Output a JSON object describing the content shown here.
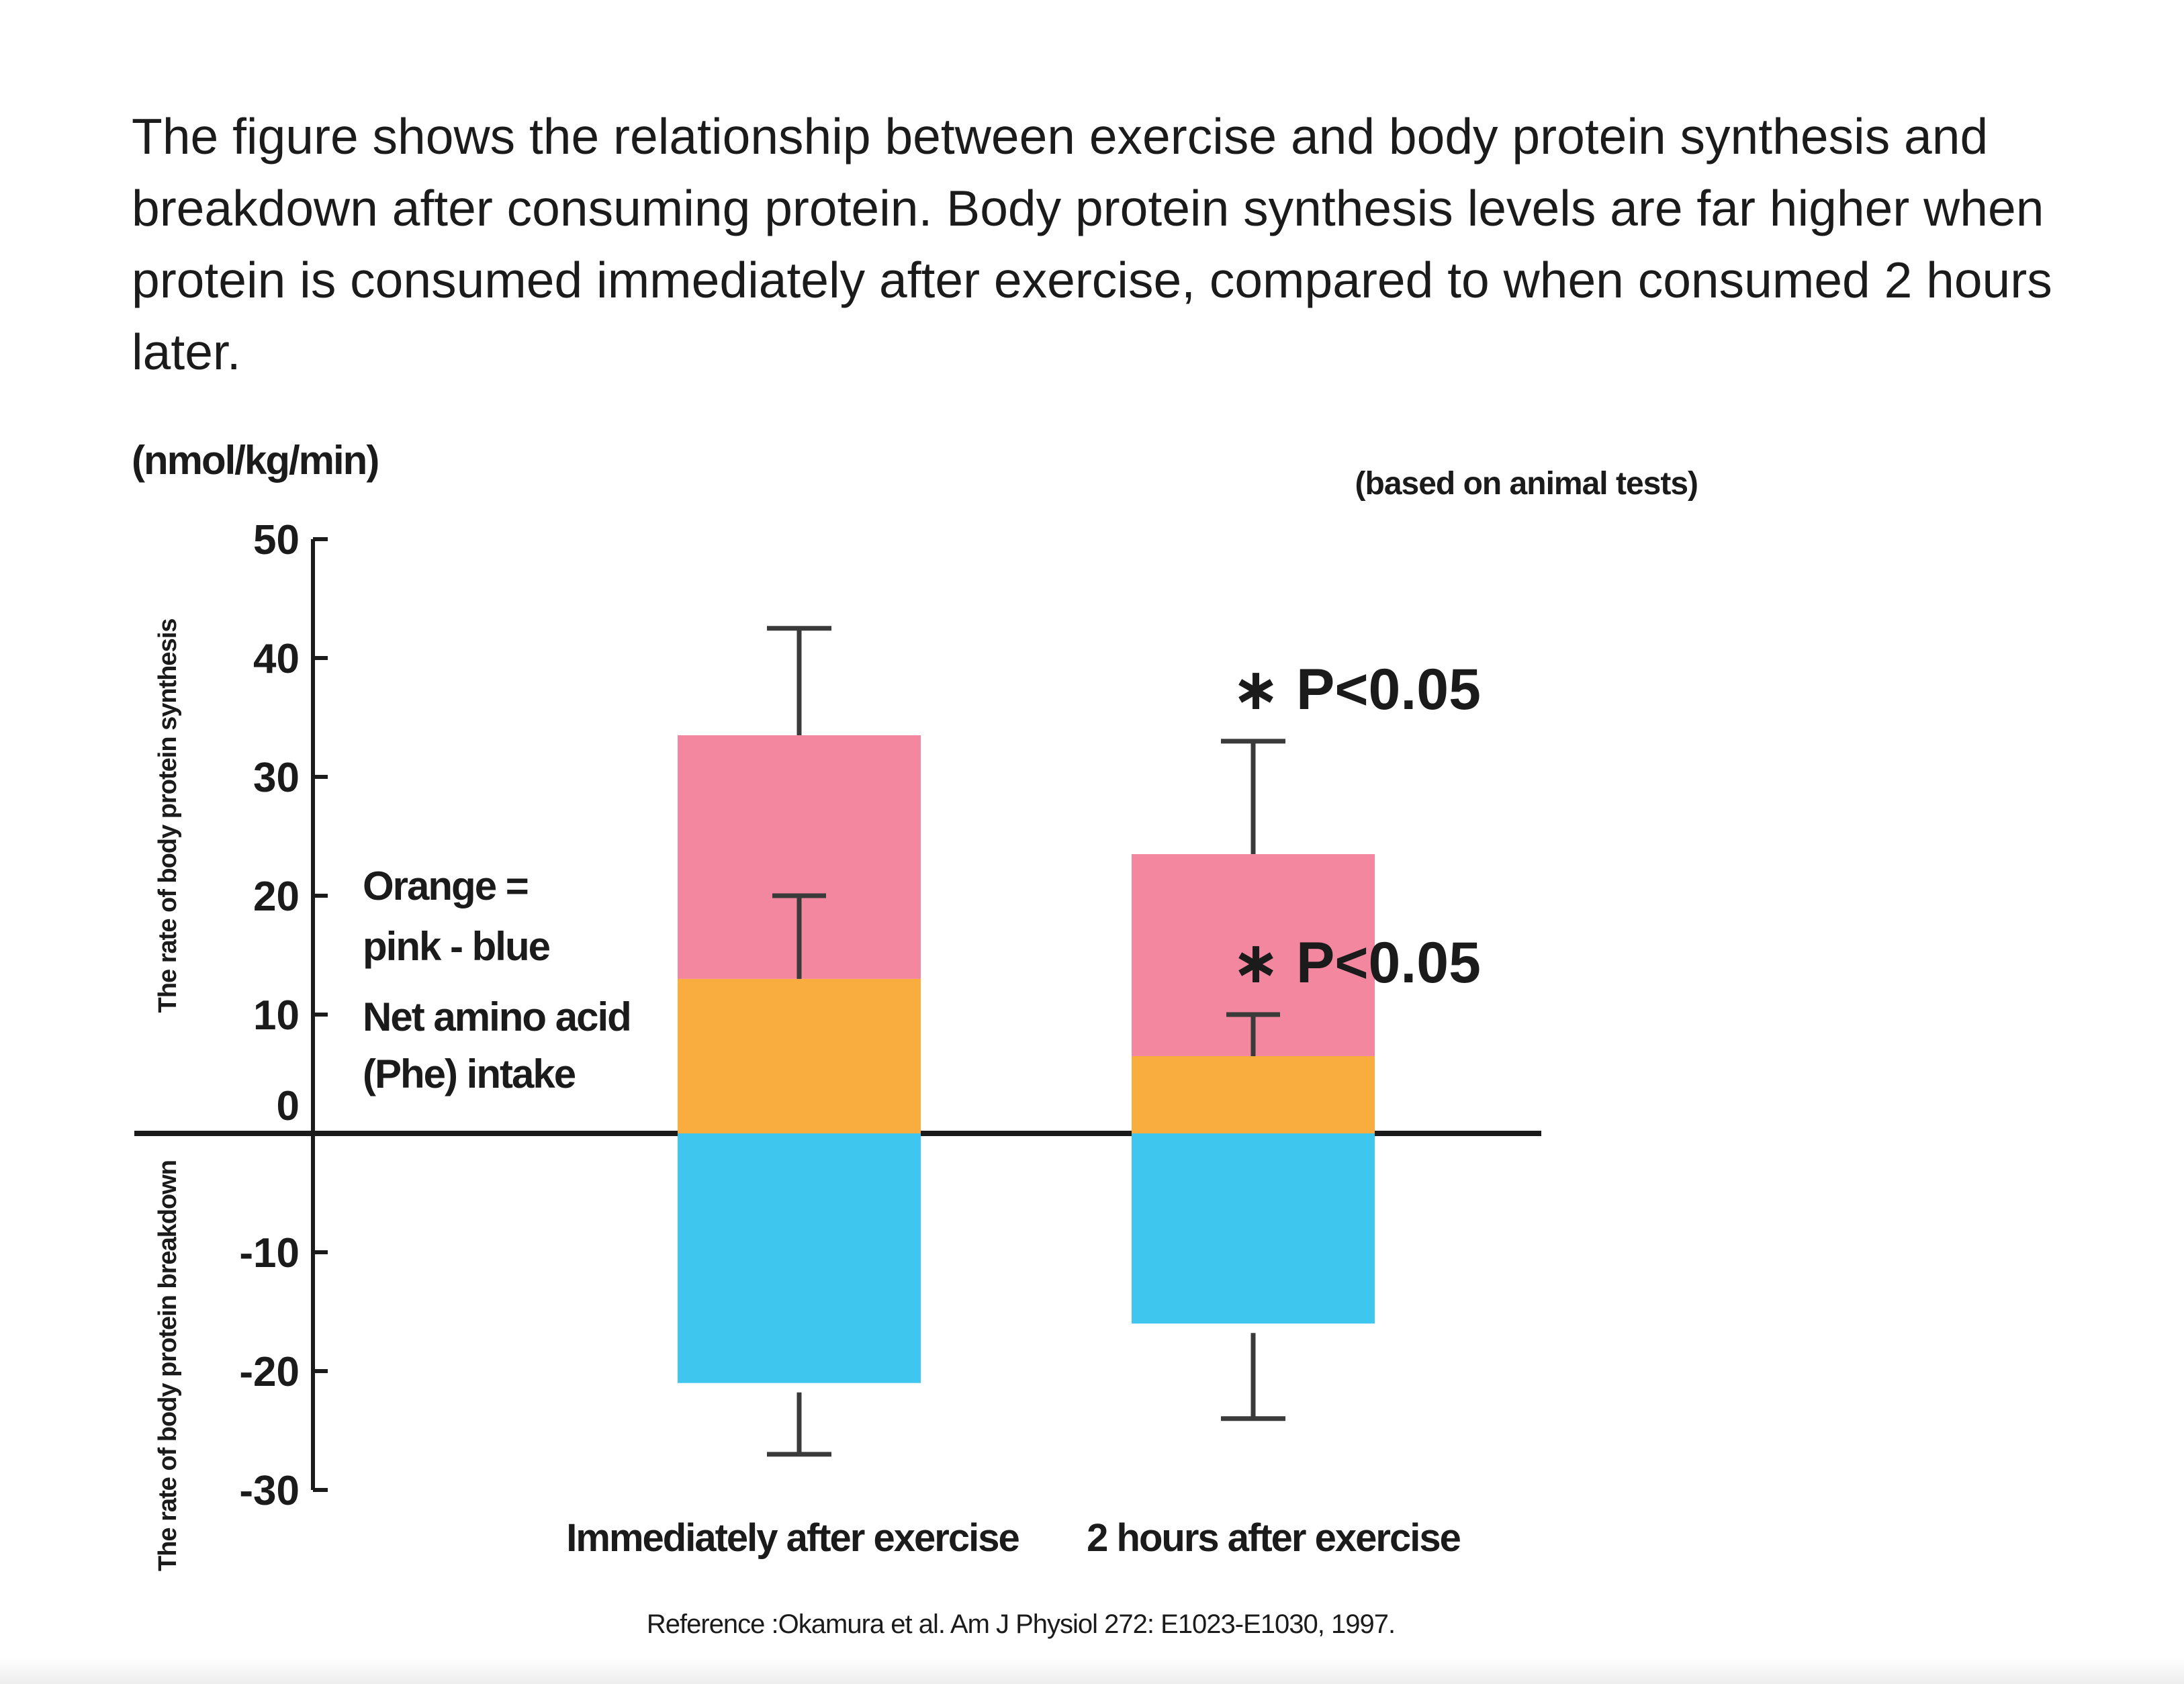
{
  "intro_text": "The figure shows the relationship between exercise and body protein synthesis and breakdown after consuming protein. Body protein synthesis levels are far higher when protein is consumed immediately after exercise, compared to when consumed 2 hours later.",
  "chart_data": {
    "type": "bar",
    "stacked": true,
    "unit_label": "(nmol/kg/min)",
    "note": "(based on animal tests)",
    "ylabel_top": "The rate of body protein synthesis",
    "ylabel_bottom": "The rate of body protein breakdown",
    "ylim": [
      -30,
      50
    ],
    "yticks": [
      50,
      40,
      30,
      20,
      10,
      0,
      -10,
      -20,
      -30
    ],
    "categories": [
      "Immediately after exercise",
      "2 hours after exercise"
    ],
    "series": [
      {
        "key": "orange",
        "color": "#F8AD3E",
        "values": [
          13,
          6.5
        ],
        "error_upper": [
          20,
          6.5
        ]
      },
      {
        "key": "pink",
        "color": "#F2879F",
        "values": [
          33.5,
          23.5
        ],
        "error_upper": [
          42.5,
          33
        ]
      },
      {
        "key": "blue",
        "color": "#3EC6EF",
        "values": [
          -21,
          -16
        ],
        "error_lower": [
          -27,
          -24
        ]
      }
    ],
    "legend_lines": [
      "Orange =",
      "pink - blue",
      "Net amino acid",
      "(Phe) intake"
    ],
    "annotations": [
      {
        "text": "∗ P<0.05",
        "category": 1,
        "y": 36.5
      },
      {
        "text": "∗ P<0.05",
        "category": 1,
        "y": 13.5
      }
    ],
    "reference": "Reference :Okamura et al. Am J Physiol 272: E1023-E1030, 1997.",
    "grid": false
  }
}
